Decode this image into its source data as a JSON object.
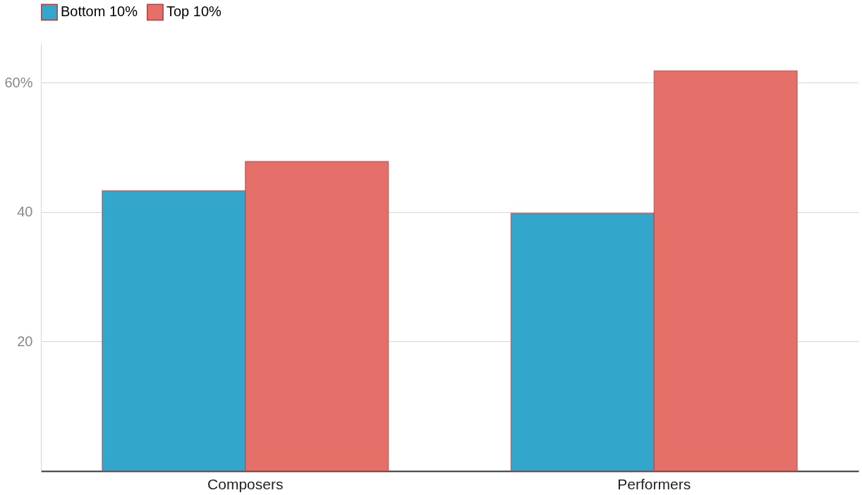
{
  "chart_data": {
    "type": "bar",
    "categories": [
      "Composers",
      "Performers"
    ],
    "series": [
      {
        "name": "Bottom 10%",
        "color": "#33a6cc",
        "values": [
          43.3,
          39.8
        ]
      },
      {
        "name": "Top 10%",
        "color": "#e5706a",
        "values": [
          47.8,
          61.8
        ]
      }
    ],
    "ylim": [
      0,
      66
    ],
    "yticks": [
      {
        "value": 0,
        "label": null
      },
      20,
      40,
      {
        "value": 60,
        "label": "60%"
      }
    ],
    "grid": "y",
    "legend": "top left"
  }
}
